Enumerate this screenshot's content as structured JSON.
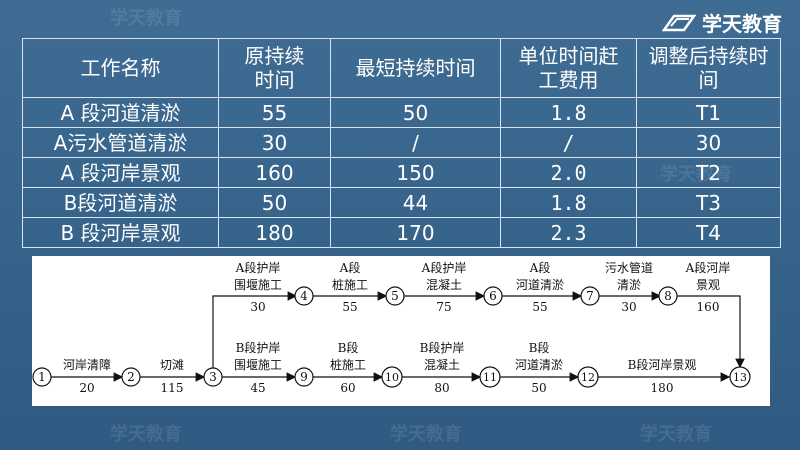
{
  "brand": {
    "name": "学天教育"
  },
  "watermarks": [
    "学天教育",
    "学天教育",
    "学天教育",
    "学天教育",
    "学天教育"
  ],
  "table": {
    "headers": [
      "工作名称",
      "原持续时间",
      "最短持续时间",
      "单位时间赶工费用",
      "调整后持续时间"
    ],
    "rows": [
      [
        "A 段河道清淤",
        "55",
        "50",
        "1.8",
        "T1"
      ],
      [
        "A污水管道清淤",
        "30",
        "/",
        "/",
        "30"
      ],
      [
        "A 段河岸景观",
        "160",
        "150",
        "2.0",
        "T2"
      ],
      [
        "B段河道清淤",
        "50",
        "44",
        "1.8",
        "T3"
      ],
      [
        "B 段河岸景观",
        "180",
        "170",
        "2.3",
        "T4"
      ]
    ]
  },
  "network": {
    "nodes": [
      "1",
      "2",
      "3",
      "4",
      "5",
      "6",
      "7",
      "8",
      "9",
      "10",
      "11",
      "12",
      "13"
    ],
    "activities": [
      {
        "name": "河岸清障",
        "duration": "20"
      },
      {
        "name": "切滩",
        "duration": "115"
      },
      {
        "name": "A段护岸围堰施工",
        "line1": "A段护岸",
        "line2": "围堰施工",
        "duration": "30"
      },
      {
        "line1": "A段",
        "line2": "桩施工",
        "duration": "55"
      },
      {
        "line1": "A段护岸",
        "line2": "混凝土",
        "duration": "75"
      },
      {
        "line1": "A段",
        "line2": "河道清淤",
        "duration": "55"
      },
      {
        "line1": "污水管道",
        "line2": "清淤",
        "duration": "30"
      },
      {
        "line1": "A段河岸",
        "line2": "景观",
        "duration": "160"
      },
      {
        "line1": "B段护岸",
        "line2": "围堰施工",
        "duration": "45"
      },
      {
        "line1": "B段",
        "line2": "桩施工",
        "duration": "60"
      },
      {
        "line1": "B段护岸",
        "line2": "混凝土",
        "duration": "80"
      },
      {
        "line1": "B段",
        "line2": "河道清淤",
        "duration": "50"
      },
      {
        "name": "B段河岸景观",
        "duration": "180"
      }
    ]
  }
}
